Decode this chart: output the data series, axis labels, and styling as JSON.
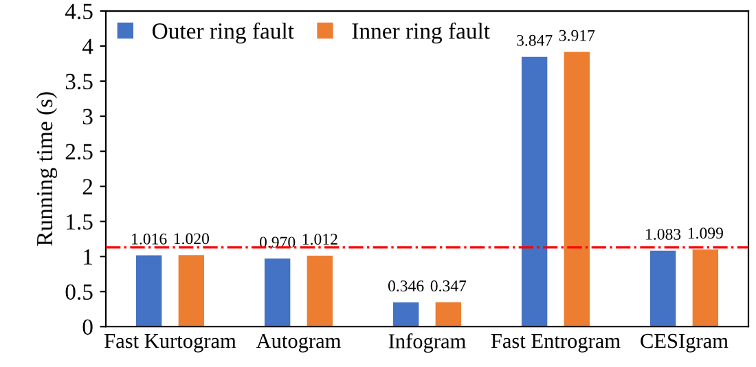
{
  "chart_data": {
    "type": "bar",
    "ylabel": "Running time (s)",
    "categories": [
      "Fast Kurtogram",
      "Autogram",
      "Infogram",
      "Fast Entrogram",
      "CESIgram"
    ],
    "series": [
      {
        "name": "Outer ring fault",
        "color": "#4472c4",
        "values": [
          1.016,
          0.97,
          0.346,
          3.847,
          1.083
        ],
        "value_labels": [
          "1.016",
          "0.970",
          "0.346",
          "3.847",
          "1.083"
        ]
      },
      {
        "name": "Inner ring fault",
        "color": "#ed7d31",
        "values": [
          1.02,
          1.012,
          0.347,
          3.917,
          1.099
        ],
        "value_labels": [
          "1.020",
          "1.012",
          "0.347",
          "3.917",
          "1.099"
        ]
      }
    ],
    "ylim": [
      0,
      4.5
    ],
    "yticks": [
      0,
      0.5,
      1,
      1.5,
      2,
      2.5,
      3,
      3.5,
      4,
      4.5
    ],
    "ref_lines": [
      {
        "axis": "y",
        "value": 1.13,
        "label": null,
        "color": "#ff0000",
        "line_style": "dashdot"
      }
    ],
    "grid": false,
    "legend": "top left"
  }
}
